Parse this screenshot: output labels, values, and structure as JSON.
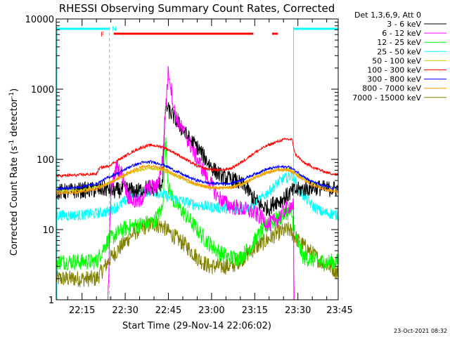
{
  "chart_data": {
    "type": "line",
    "title": "RHESSI Observing Summary Count Rates, Corrected",
    "xlabel": "Start Time (29-Nov-14 22:06:02)",
    "ylabel_main": "Corrected Count Rate (s",
    "ylabel_sup1": "-1",
    "ylabel_mid": " detector",
    "ylabel_sup2": "-1",
    "ylabel_end": ")",
    "yscale": "log",
    "ylim": [
      1,
      10000
    ],
    "xlim_minutes": [
      6.03,
      104
    ],
    "x_ticks": [
      {
        "m": 15,
        "label": "22:15"
      },
      {
        "m": 30,
        "label": "22:30"
      },
      {
        "m": 45,
        "label": "22:45"
      },
      {
        "m": 60,
        "label": "23:00"
      },
      {
        "m": 75,
        "label": "23:15"
      },
      {
        "m": 90,
        "label": "23:30"
      },
      {
        "m": 105,
        "label": "23:45"
      }
    ],
    "y_ticks": [
      {
        "v": 1,
        "label": "1"
      },
      {
        "v": 10,
        "label": "10"
      },
      {
        "v": 100,
        "label": "100"
      },
      {
        "v": 1000,
        "label": "1000"
      },
      {
        "v": 10000,
        "label": "10000"
      }
    ],
    "legend_header": "Det 1,3,6,9, Att 0",
    "timestamp": "23-Oct-2021 08:32",
    "flag_n_label": "N",
    "flag_f_label": "F",
    "night_intervals": [
      [
        6.03,
        24.5
      ],
      [
        88.5,
        104
      ]
    ],
    "flare_intervals": [
      [
        26,
        74.5
      ],
      [
        81,
        83
      ]
    ],
    "series": [
      {
        "name": "3 - 6 keV",
        "color": "#000000",
        "points": [
          [
            6,
            34
          ],
          [
            14,
            36
          ],
          [
            20,
            37
          ],
          [
            24,
            38
          ],
          [
            26,
            35
          ],
          [
            30,
            38
          ],
          [
            34,
            35
          ],
          [
            38,
            40
          ],
          [
            41,
            38
          ],
          [
            43,
            50
          ],
          [
            44,
            600
          ],
          [
            45,
            500
          ],
          [
            47,
            400
          ],
          [
            49,
            300
          ],
          [
            52,
            200
          ],
          [
            55,
            150
          ],
          [
            58,
            100
          ],
          [
            61,
            70
          ],
          [
            64,
            55
          ],
          [
            68,
            50
          ],
          [
            72,
            40
          ],
          [
            74,
            30
          ],
          [
            77,
            22
          ],
          [
            80,
            20
          ],
          [
            82,
            25
          ],
          [
            84,
            26
          ],
          [
            86,
            30
          ],
          [
            88,
            35
          ],
          [
            92,
            38
          ],
          [
            96,
            40
          ],
          [
            100,
            38
          ],
          [
            104,
            38
          ]
        ]
      },
      {
        "name": "6 - 12 keV",
        "color": "#ff00ff",
        "points": [
          [
            6,
            1
          ],
          [
            24,
            1
          ],
          [
            25,
            35
          ],
          [
            27,
            80
          ],
          [
            29,
            60
          ],
          [
            31,
            30
          ],
          [
            33,
            25
          ],
          [
            35,
            25
          ],
          [
            38,
            40
          ],
          [
            41,
            40
          ],
          [
            43,
            100
          ],
          [
            44,
            500
          ],
          [
            45,
            1900
          ],
          [
            46,
            1000
          ],
          [
            47,
            500
          ],
          [
            49,
            300
          ],
          [
            51,
            220
          ],
          [
            53,
            150
          ],
          [
            55,
            100
          ],
          [
            58,
            60
          ],
          [
            62,
            30
          ],
          [
            66,
            22
          ],
          [
            70,
            20
          ],
          [
            74,
            18
          ],
          [
            77,
            15
          ],
          [
            80,
            12
          ],
          [
            83,
            14
          ],
          [
            85,
            18
          ],
          [
            87,
            22
          ],
          [
            88.5,
            22
          ],
          [
            88.6,
            1
          ],
          [
            104,
            1
          ]
        ]
      },
      {
        "name": "12 - 25 keV",
        "color": "#00ff00",
        "points": [
          [
            6,
            3.5
          ],
          [
            14,
            3.5
          ],
          [
            20,
            3.5
          ],
          [
            22,
            5
          ],
          [
            24,
            7
          ],
          [
            26,
            8
          ],
          [
            29,
            10
          ],
          [
            32,
            11
          ],
          [
            36,
            12
          ],
          [
            40,
            13
          ],
          [
            43,
            20
          ],
          [
            44,
            200
          ],
          [
            45,
            40
          ],
          [
            47,
            25
          ],
          [
            50,
            18
          ],
          [
            55,
            10
          ],
          [
            58,
            7
          ],
          [
            62,
            5
          ],
          [
            66,
            4
          ],
          [
            70,
            4
          ],
          [
            74,
            6
          ],
          [
            77,
            9
          ],
          [
            80,
            12
          ],
          [
            84,
            15
          ],
          [
            86,
            18
          ],
          [
            88,
            16
          ],
          [
            89,
            8
          ],
          [
            92,
            4
          ],
          [
            98,
            3.5
          ],
          [
            104,
            3.5
          ]
        ]
      },
      {
        "name": "25 - 50 keV",
        "color": "#00ffff",
        "points": [
          [
            6,
            16
          ],
          [
            14,
            16
          ],
          [
            20,
            17
          ],
          [
            24,
            18
          ],
          [
            28,
            22
          ],
          [
            32,
            30
          ],
          [
            36,
            35
          ],
          [
            40,
            35
          ],
          [
            44,
            30
          ],
          [
            48,
            27
          ],
          [
            52,
            24
          ],
          [
            56,
            22
          ],
          [
            60,
            21
          ],
          [
            64,
            20
          ],
          [
            68,
            20
          ],
          [
            72,
            20
          ],
          [
            76,
            25
          ],
          [
            80,
            35
          ],
          [
            84,
            50
          ],
          [
            88,
            60
          ],
          [
            90,
            40
          ],
          [
            92,
            30
          ],
          [
            95,
            22
          ],
          [
            98,
            18
          ],
          [
            101,
            17
          ],
          [
            104,
            16
          ]
        ]
      },
      {
        "name": "50 - 100 keV",
        "color": "#cccc00",
        "points": [
          [
            6,
            35
          ],
          [
            14,
            36
          ],
          [
            20,
            40
          ],
          [
            24,
            45
          ],
          [
            28,
            55
          ],
          [
            32,
            65
          ],
          [
            36,
            72
          ],
          [
            39,
            75
          ],
          [
            43,
            70
          ],
          [
            47,
            60
          ],
          [
            51,
            50
          ],
          [
            55,
            43
          ],
          [
            59,
            40
          ],
          [
            63,
            39
          ],
          [
            67,
            40
          ],
          [
            71,
            45
          ],
          [
            75,
            55
          ],
          [
            79,
            65
          ],
          [
            83,
            72
          ],
          [
            87,
            72
          ],
          [
            90,
            60
          ],
          [
            94,
            48
          ],
          [
            98,
            42
          ],
          [
            101,
            40
          ],
          [
            104,
            38
          ]
        ]
      },
      {
        "name": "100 - 300 keV",
        "color": "#ff0000",
        "points": [
          [
            6,
            58
          ],
          [
            14,
            60
          ],
          [
            20,
            62
          ],
          [
            21,
            75
          ],
          [
            24,
            80
          ],
          [
            28,
            100
          ],
          [
            32,
            125
          ],
          [
            36,
            150
          ],
          [
            39,
            160
          ],
          [
            43,
            150
          ],
          [
            47,
            125
          ],
          [
            51,
            100
          ],
          [
            55,
            80
          ],
          [
            59,
            72
          ],
          [
            63,
            70
          ],
          [
            67,
            75
          ],
          [
            71,
            95
          ],
          [
            75,
            125
          ],
          [
            79,
            155
          ],
          [
            83,
            180
          ],
          [
            86,
            195
          ],
          [
            88,
            190
          ],
          [
            89,
            120
          ],
          [
            92,
            90
          ],
          [
            96,
            75
          ],
          [
            100,
            65
          ],
          [
            104,
            60
          ]
        ]
      },
      {
        "name": "300 - 800 keV",
        "color": "#0000ff",
        "points": [
          [
            6,
            38
          ],
          [
            14,
            40
          ],
          [
            20,
            45
          ],
          [
            24,
            55
          ],
          [
            28,
            65
          ],
          [
            32,
            80
          ],
          [
            36,
            90
          ],
          [
            39,
            92
          ],
          [
            43,
            85
          ],
          [
            47,
            70
          ],
          [
            51,
            58
          ],
          [
            55,
            50
          ],
          [
            59,
            46
          ],
          [
            63,
            45
          ],
          [
            67,
            46
          ],
          [
            71,
            52
          ],
          [
            75,
            62
          ],
          [
            79,
            72
          ],
          [
            83,
            78
          ],
          [
            87,
            78
          ],
          [
            90,
            65
          ],
          [
            94,
            50
          ],
          [
            98,
            43
          ],
          [
            101,
            40
          ],
          [
            104,
            38
          ]
        ]
      },
      {
        "name": "800 - 7000 keV",
        "color": "#ff9900",
        "points": [
          [
            6,
            33
          ],
          [
            14,
            34
          ],
          [
            20,
            38
          ],
          [
            24,
            45
          ],
          [
            28,
            55
          ],
          [
            32,
            68
          ],
          [
            36,
            78
          ],
          [
            39,
            80
          ],
          [
            43,
            74
          ],
          [
            47,
            62
          ],
          [
            51,
            52
          ],
          [
            55,
            44
          ],
          [
            59,
            40
          ],
          [
            63,
            39
          ],
          [
            67,
            40
          ],
          [
            71,
            45
          ],
          [
            75,
            55
          ],
          [
            79,
            64
          ],
          [
            83,
            70
          ],
          [
            87,
            70
          ],
          [
            90,
            58
          ],
          [
            94,
            45
          ],
          [
            98,
            39
          ],
          [
            101,
            36
          ],
          [
            104,
            34
          ]
        ]
      },
      {
        "name": "7000 - 15000 keV",
        "color": "#808000",
        "points": [
          [
            6,
            2
          ],
          [
            14,
            2
          ],
          [
            20,
            2
          ],
          [
            23,
            3
          ],
          [
            25,
            4
          ],
          [
            29,
            6
          ],
          [
            33,
            9
          ],
          [
            37,
            11
          ],
          [
            40,
            12
          ],
          [
            43,
            11
          ],
          [
            47,
            8
          ],
          [
            51,
            6
          ],
          [
            55,
            4
          ],
          [
            59,
            3
          ],
          [
            63,
            3
          ],
          [
            67,
            3
          ],
          [
            71,
            4
          ],
          [
            75,
            5.5
          ],
          [
            79,
            7
          ],
          [
            83,
            9
          ],
          [
            87,
            10
          ],
          [
            90,
            7
          ],
          [
            94,
            5
          ],
          [
            98,
            3.5
          ],
          [
            101,
            3
          ],
          [
            104,
            2.5
          ]
        ]
      }
    ]
  }
}
